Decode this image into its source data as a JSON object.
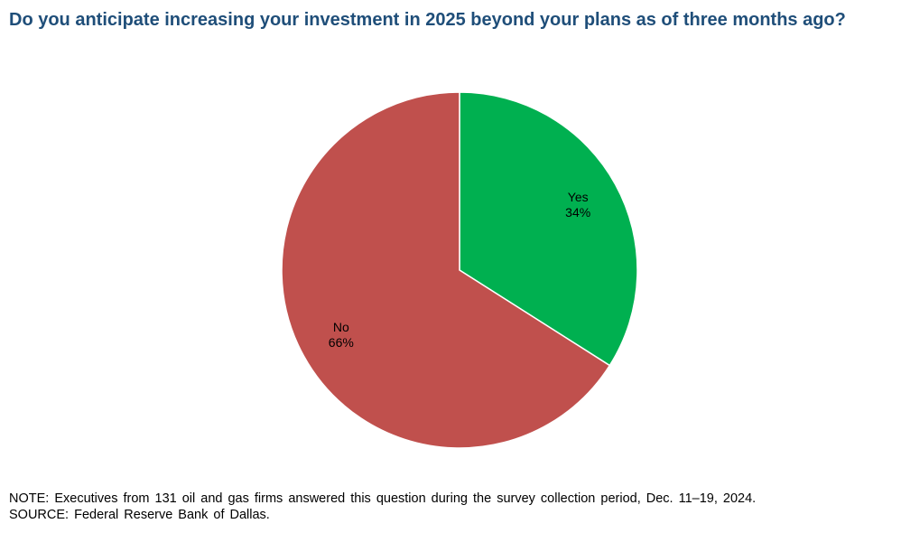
{
  "title": "Do you anticipate increasing your investment in 2025 beyond your plans as of three months ago?",
  "chart_data": {
    "type": "pie",
    "slices": [
      {
        "label": "Yes",
        "value": 34,
        "value_label": "34%",
        "color": "#00b050"
      },
      {
        "label": "No",
        "value": 66,
        "value_label": "66%",
        "color": "#c0504d"
      }
    ],
    "start": "12 o'clock",
    "direction": "clockwise",
    "legend": "none"
  },
  "footer": {
    "note": "NOTE: Executives from 131 oil and gas firms answered this question during the survey collection period, Dec. 11–19, 2024.",
    "source": "SOURCE: Federal Reserve Bank of Dallas."
  }
}
